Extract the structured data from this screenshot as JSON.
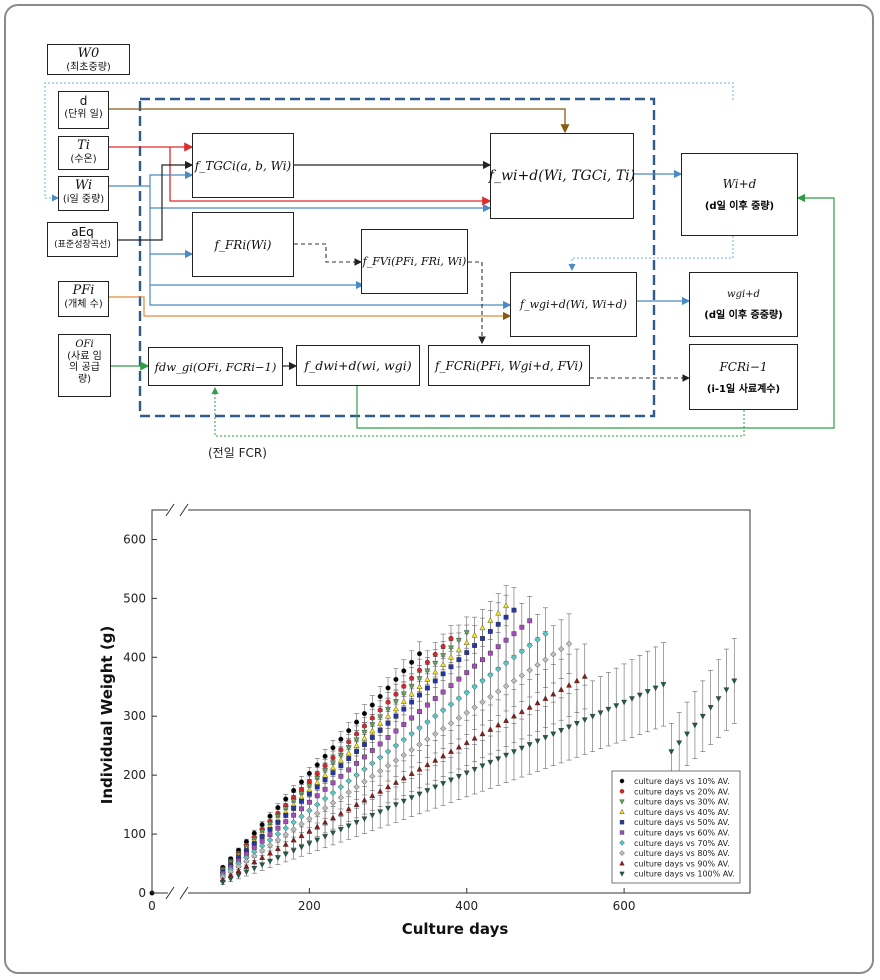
{
  "diagram": {
    "inputs": {
      "w0": {
        "symbol": "W0",
        "label": "(최초중량)"
      },
      "d": {
        "symbol": "d",
        "label": "(단위 일)"
      },
      "ti": {
        "symbol": "Ti",
        "label": "(수온)"
      },
      "wi": {
        "symbol": "Wi",
        "label": "(i일 중량)"
      },
      "aeq": {
        "symbol": "aEq",
        "label": "(표준성장곡선)"
      },
      "pfi": {
        "symbol": "PFi",
        "label": "(개체 수)"
      },
      "ofi": {
        "symbol": "OFi",
        "label": "(사료 임의 공급량)"
      }
    },
    "functions": {
      "tgc": "f_TGCi(a, b, Wi)",
      "wid": "f_wi+d(Wi, TGCi, Ti)",
      "fr": "f_FRi(Wi)",
      "fv": "f_FVi(PFi, FRi, Wi)",
      "wg": "f_wgi+d(Wi, Wi+d)",
      "dwg": "fdw_gi(OFi, FCRi−1)",
      "dwid": "f_dwi+d(wi, wgi)",
      "fcr": "f_FCRi(PFi, Wgi+d, FVi)"
    },
    "outputs": {
      "wid": {
        "symbol": "Wi+d",
        "label": "(d일 이후 중량)"
      },
      "wg": {
        "symbol": "wgi+d",
        "label": "(d일 이후 증중량)"
      },
      "fcr": {
        "symbol": "FCRi−1",
        "label": "(i-1일 사료계수)"
      }
    },
    "feedback_label": "(전일 FCR)"
  },
  "chart_data": {
    "type": "scatter",
    "xlabel": "Culture days",
    "ylabel": "Individual Weight (g)",
    "xlim": [
      0,
      760
    ],
    "ylim": [
      0,
      650
    ],
    "xticks": [
      0,
      200,
      400,
      600
    ],
    "yticks": [
      0,
      100,
      200,
      300,
      400,
      500,
      600
    ],
    "axis_break": true,
    "legend_position": "bottom-right",
    "initial_point": [
      0,
      0
    ],
    "x_start": 90,
    "x_step": 10,
    "series": [
      {
        "name": "culture days vs 10% AV.",
        "marker": "circle",
        "color": "#000000",
        "end_x": 340,
        "slope": 1.45,
        "err": 0.05
      },
      {
        "name": "culture days vs 20% AV.",
        "marker": "circle",
        "color": "#d6262b",
        "end_x": 380,
        "slope": 1.35,
        "err": 0.05
      },
      {
        "name": "culture days vs 30% AV.",
        "marker": "triangle-down",
        "color": "#5fa55a",
        "end_x": 400,
        "slope": 1.3,
        "err": 0.06
      },
      {
        "name": "culture days vs 40% AV.",
        "marker": "triangle-up",
        "color": "#f2e51b",
        "end_x": 450,
        "slope": 1.25,
        "err": 0.07
      },
      {
        "name": "culture days vs 50% AV.",
        "marker": "square",
        "color": "#2337a3",
        "end_x": 460,
        "slope": 1.2,
        "err": 0.08
      },
      {
        "name": "culture days vs 60% AV.",
        "marker": "square",
        "color": "#a64bbd",
        "end_x": 480,
        "slope": 1.1,
        "err": 0.09
      },
      {
        "name": "culture days vs 70% AV.",
        "marker": "diamond",
        "color": "#56c8c8",
        "end_x": 500,
        "slope": 1.0,
        "err": 0.1
      },
      {
        "name": "culture days vs 80% AV.",
        "marker": "diamond",
        "color": "#bcbcbc",
        "end_x": 530,
        "slope": 0.9,
        "err": 0.12
      },
      {
        "name": "culture days vs 90% AV.",
        "marker": "triangle-up",
        "color": "#8b1a1a",
        "end_x": 550,
        "slope": 0.75,
        "err": 0.15
      },
      {
        "name": "culture days vs 100% AV.",
        "marker": "triangle-down",
        "color": "#1f5c45",
        "end_x": 740,
        "slope": 0.6,
        "err": 0.2
      }
    ]
  }
}
